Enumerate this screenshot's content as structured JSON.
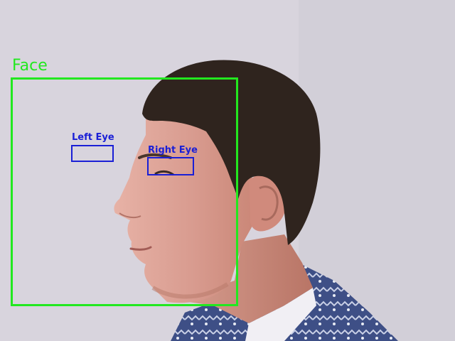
{
  "detections": {
    "face": {
      "label": "Face",
      "color": "#22e81f"
    },
    "left_eye": {
      "label": "Left Eye",
      "color": "#1a1fd6"
    },
    "right_eye": {
      "label": "Right Eye",
      "color": "#1a1fd6"
    }
  }
}
